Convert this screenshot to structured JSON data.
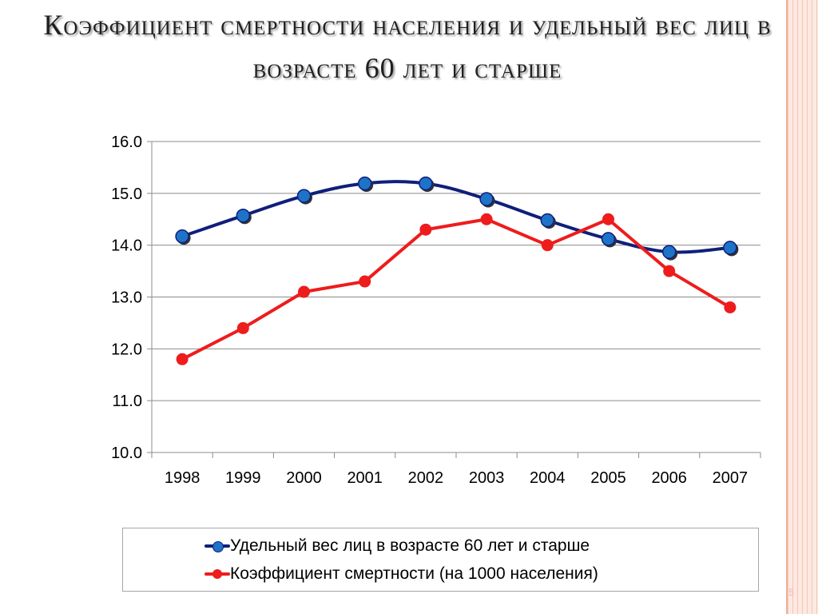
{
  "slide": {
    "title": "Коэффициент смертности населения и удельный вес лиц в возрасте 60 лет и старше",
    "page_number": "5"
  },
  "chart_data": {
    "type": "line",
    "categories": [
      "1998",
      "1999",
      "2000",
      "2001",
      "2002",
      "2003",
      "2004",
      "2005",
      "2006",
      "2007"
    ],
    "series": [
      {
        "name": "Удельный вес лиц в возрасте 60 лет и старше",
        "values": [
          14.17,
          14.57,
          14.95,
          15.19,
          15.19,
          14.89,
          14.48,
          14.12,
          13.87,
          13.95
        ],
        "color": "#0f1f7a",
        "marker_color": "#1e73c8",
        "smooth": true
      },
      {
        "name": "Коэффициент смертности (на 1000 населения)",
        "values": [
          11.8,
          12.4,
          13.1,
          13.3,
          14.3,
          14.5,
          14.0,
          14.5,
          13.5,
          12.8
        ],
        "color": "#ee1c1c",
        "marker_color": "#ee1c1c",
        "smooth": false
      }
    ],
    "ylim": [
      10.0,
      16.0
    ],
    "yticks": [
      "16.0",
      "15.0",
      "14.0",
      "13.0",
      "12.0",
      "11.0",
      "10.0"
    ],
    "grid": true,
    "legend_position": "bottom"
  }
}
